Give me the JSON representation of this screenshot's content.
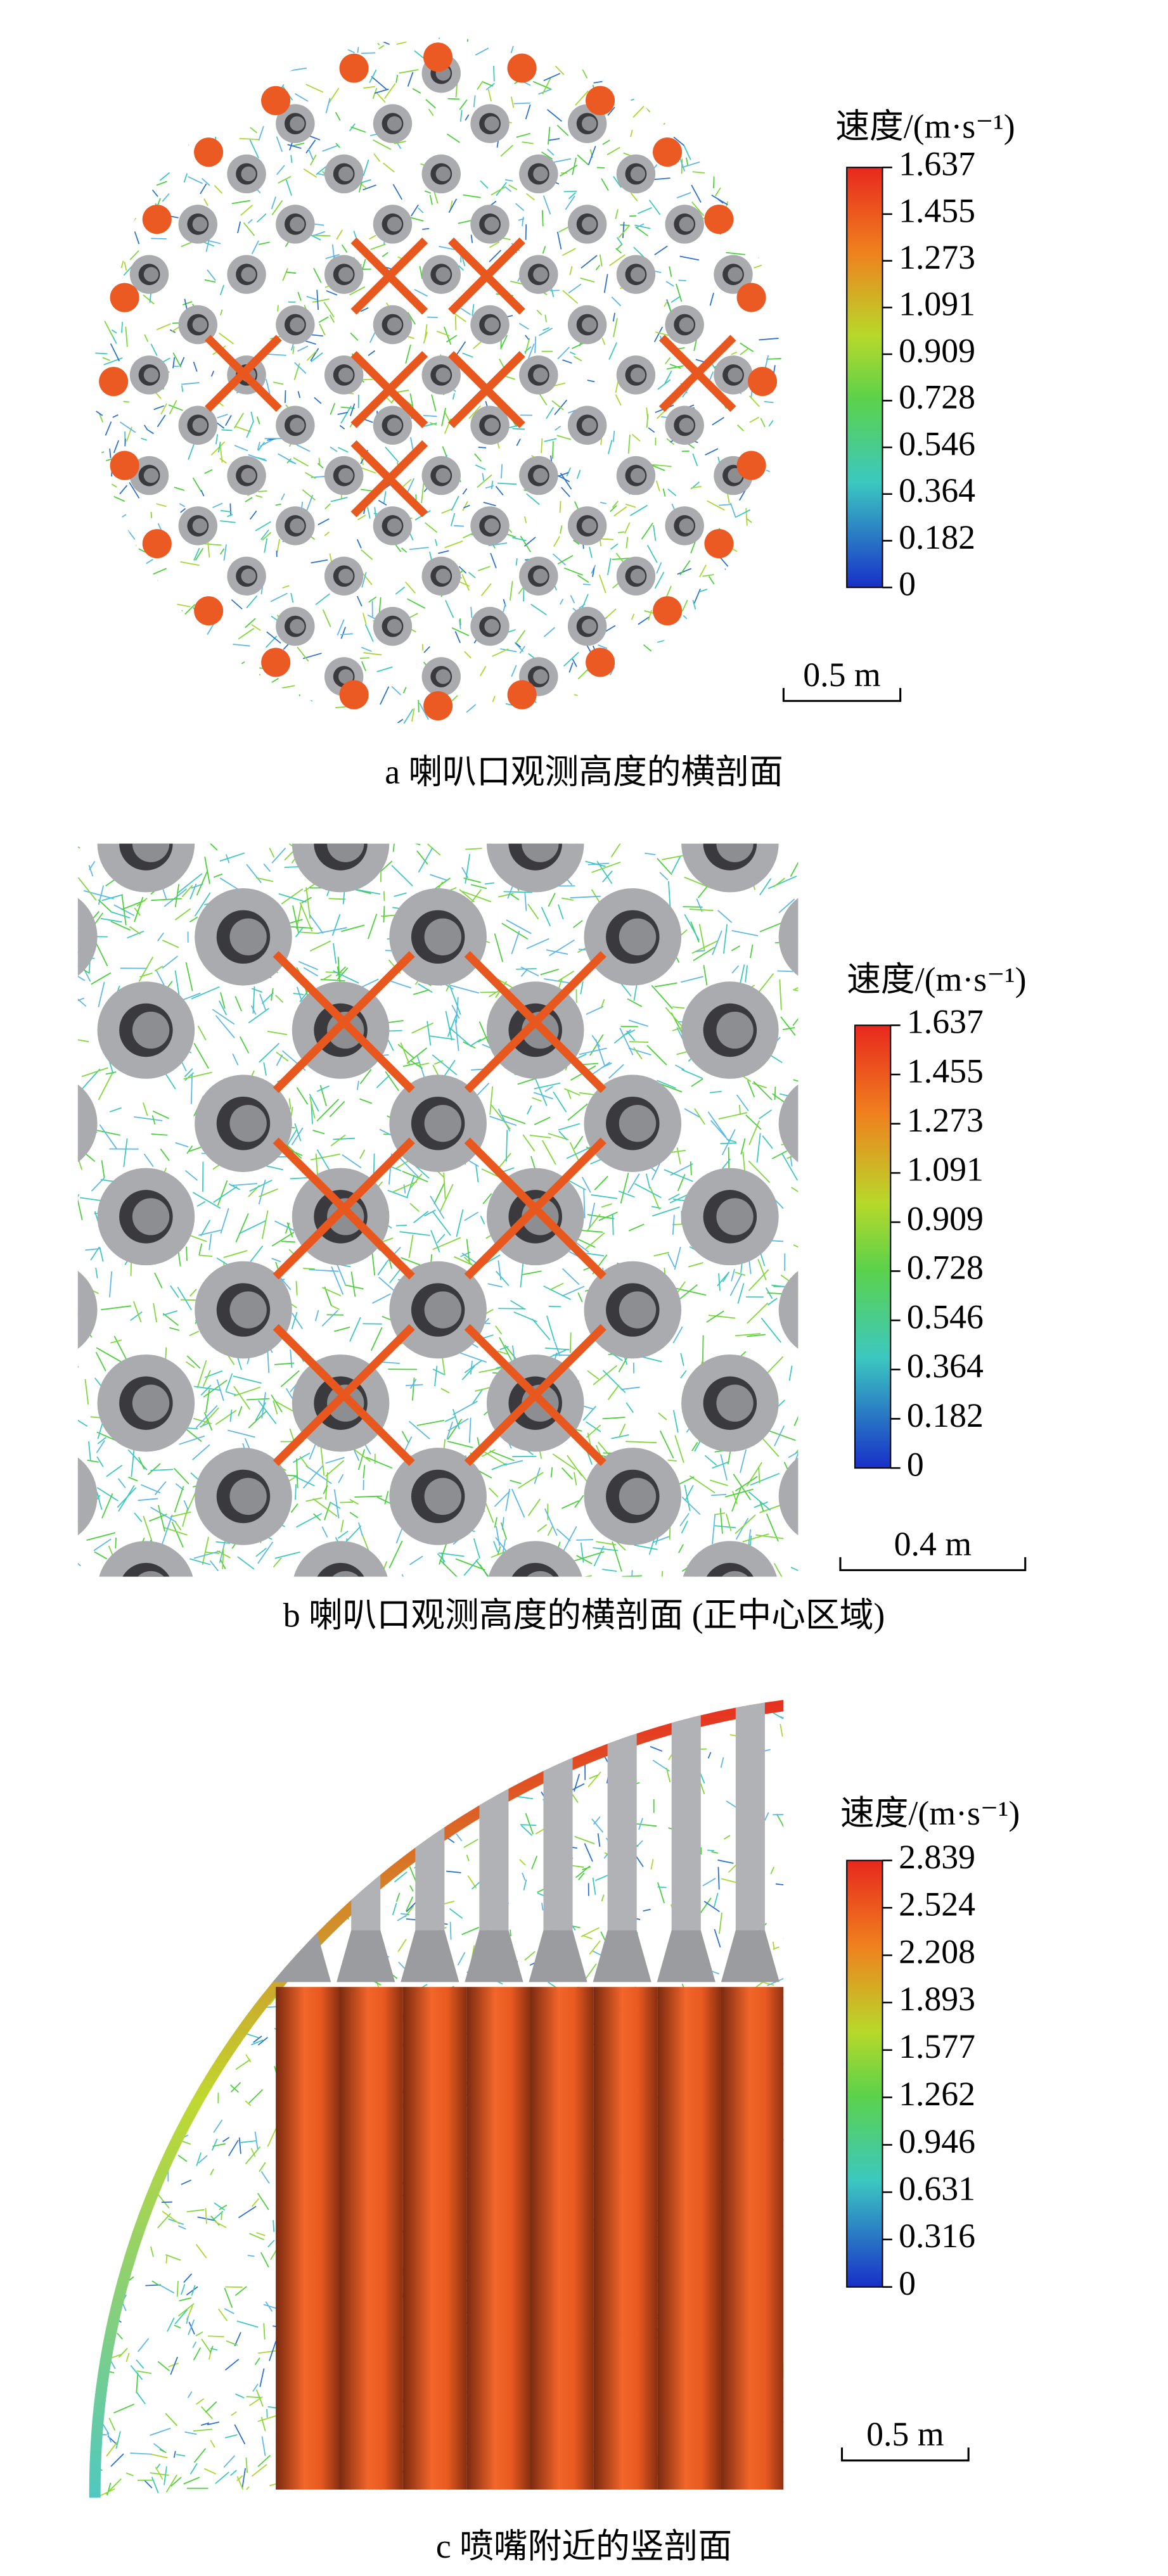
{
  "panels": [
    {
      "caption": "a  喇叭口观测高度的横剖面",
      "legend_title": "速度/(m·s⁻¹)",
      "colorbar_ticks": [
        1.637,
        1.455,
        1.273,
        1.091,
        0.909,
        0.728,
        0.546,
        0.364,
        0.182,
        0
      ],
      "scale_bar": "0.5 m"
    },
    {
      "caption": "b  喇叭口观测高度的横剖面 (正中心区域)",
      "legend_title": "速度/(m·s⁻¹)",
      "colorbar_ticks": [
        1.637,
        1.455,
        1.273,
        1.091,
        0.909,
        0.728,
        0.546,
        0.364,
        0.182,
        0
      ],
      "scale_bar": "0.4 m"
    },
    {
      "caption": "c  喷嘴附近的竖剖面",
      "legend_title": "速度/(m·s⁻¹)",
      "colorbar_ticks": [
        2.839,
        2.524,
        2.208,
        1.893,
        1.577,
        1.262,
        0.946,
        0.631,
        0.316,
        0
      ],
      "scale_bar": "0.5 m"
    }
  ]
}
